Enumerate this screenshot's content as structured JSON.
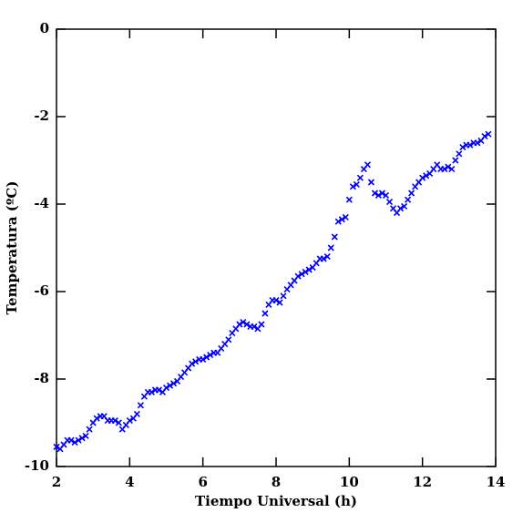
{
  "chart_data": {
    "type": "scatter",
    "xlabel": "Tiempo Universal (h)",
    "ylabel": "Temperatura (ºC)",
    "xlim": [
      2,
      14
    ],
    "xticks": [
      2,
      4,
      6,
      8,
      10,
      12,
      14
    ],
    "ylim": [
      -10,
      0
    ],
    "yticks": [
      -10,
      -8,
      -6,
      -4,
      -2,
      0
    ],
    "marker": "x",
    "color": "#0000ff",
    "x": [
      2.0,
      2.1,
      2.2,
      2.3,
      2.4,
      2.5,
      2.6,
      2.7,
      2.8,
      2.9,
      3.0,
      3.1,
      3.2,
      3.3,
      3.4,
      3.5,
      3.6,
      3.7,
      3.8,
      3.9,
      4.0,
      4.1,
      4.2,
      4.3,
      4.4,
      4.5,
      4.6,
      4.7,
      4.8,
      4.9,
      5.0,
      5.1,
      5.2,
      5.3,
      5.4,
      5.5,
      5.6,
      5.7,
      5.8,
      5.9,
      6.0,
      6.1,
      6.2,
      6.3,
      6.4,
      6.5,
      6.6,
      6.7,
      6.8,
      6.9,
      7.0,
      7.1,
      7.2,
      7.3,
      7.4,
      7.5,
      7.6,
      7.7,
      7.8,
      7.9,
      8.0,
      8.1,
      8.2,
      8.3,
      8.4,
      8.5,
      8.6,
      8.7,
      8.8,
      8.9,
      9.0,
      9.1,
      9.2,
      9.3,
      9.4,
      9.5,
      9.6,
      9.7,
      9.8,
      9.9,
      10.0,
      10.1,
      10.2,
      10.3,
      10.4,
      10.5,
      10.6,
      10.7,
      10.8,
      10.9,
      11.0,
      11.1,
      11.2,
      11.3,
      11.4,
      11.5,
      11.6,
      11.7,
      11.8,
      11.9,
      12.0,
      12.1,
      12.2,
      12.3,
      12.4,
      12.5,
      12.6,
      12.7,
      12.8,
      12.9,
      13.0,
      13.1,
      13.2,
      13.3,
      13.4,
      13.5,
      13.6,
      13.7,
      13.8
    ],
    "values": [
      -9.55,
      -9.6,
      -9.5,
      -9.4,
      -9.4,
      -9.45,
      -9.4,
      -9.35,
      -9.3,
      -9.15,
      -9.0,
      -8.9,
      -8.85,
      -8.85,
      -8.95,
      -8.95,
      -8.95,
      -9.0,
      -9.15,
      -9.05,
      -8.95,
      -8.9,
      -8.8,
      -8.6,
      -8.4,
      -8.3,
      -8.3,
      -8.25,
      -8.25,
      -8.3,
      -8.2,
      -8.15,
      -8.1,
      -8.05,
      -7.95,
      -7.85,
      -7.75,
      -7.65,
      -7.6,
      -7.55,
      -7.55,
      -7.5,
      -7.45,
      -7.4,
      -7.4,
      -7.3,
      -7.2,
      -7.1,
      -6.95,
      -6.85,
      -6.75,
      -6.7,
      -6.75,
      -6.8,
      -6.8,
      -6.85,
      -6.75,
      -6.5,
      -6.3,
      -6.2,
      -6.2,
      -6.25,
      -6.1,
      -5.95,
      -5.85,
      -5.75,
      -5.65,
      -5.6,
      -5.55,
      -5.5,
      -5.45,
      -5.35,
      -5.25,
      -5.25,
      -5.2,
      -5.0,
      -4.75,
      -4.4,
      -4.35,
      -4.3,
      -3.9,
      -3.6,
      -3.55,
      -3.4,
      -3.2,
      -3.1,
      -3.5,
      -3.75,
      -3.8,
      -3.75,
      -3.8,
      -3.95,
      -4.1,
      -4.2,
      -4.1,
      -4.05,
      -3.9,
      -3.75,
      -3.6,
      -3.5,
      -3.4,
      -3.35,
      -3.3,
      -3.2,
      -3.1,
      -3.2,
      -3.2,
      -3.15,
      -3.2,
      -3.0,
      -2.85,
      -2.7,
      -2.65,
      -2.65,
      -2.6,
      -2.6,
      -2.55,
      -2.45,
      -2.4
    ]
  }
}
